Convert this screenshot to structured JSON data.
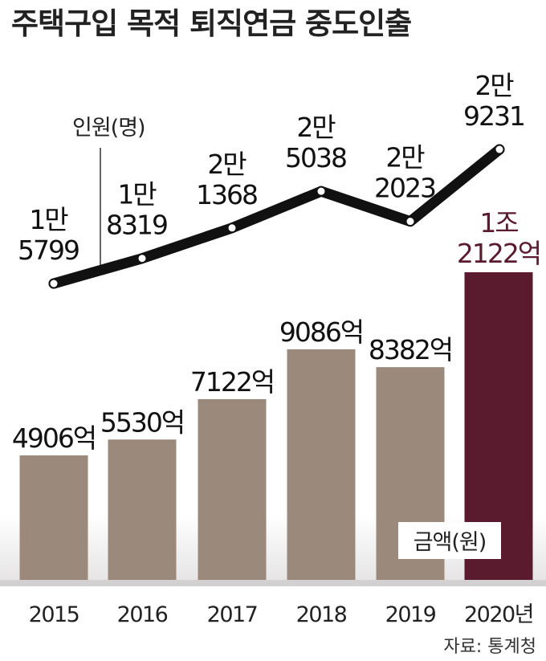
{
  "chart_data": {
    "type": "bar",
    "title": "주택구입 목적 퇴직연금 중도인출",
    "source": "자료: 통계청",
    "categories": [
      "2015",
      "2016",
      "2017",
      "2018",
      "2019",
      "2020년"
    ],
    "series": [
      {
        "name": "금액(원)",
        "type": "bar",
        "color": "#9b8a7c",
        "colors": [
          "#9b8a7c",
          "#9b8a7c",
          "#9b8a7c",
          "#9b8a7c",
          "#9b8a7c",
          "#5a1b2f"
        ],
        "values": [
          4906,
          5530,
          7122,
          9086,
          8382,
          12122
        ],
        "value_labels": [
          "4906억",
          "5530억",
          "7122억",
          "9086억",
          "8382억",
          "1조\n2122억"
        ]
      },
      {
        "name": "인원(명)",
        "type": "line",
        "color": "#111111",
        "values": [
          15799,
          18319,
          21368,
          25038,
          22023,
          29231
        ],
        "value_labels": [
          "1만\n5799",
          "1만\n8319",
          "2만\n1368",
          "2만\n5038",
          "2만\n2023",
          "2만\n9231"
        ]
      }
    ]
  }
}
